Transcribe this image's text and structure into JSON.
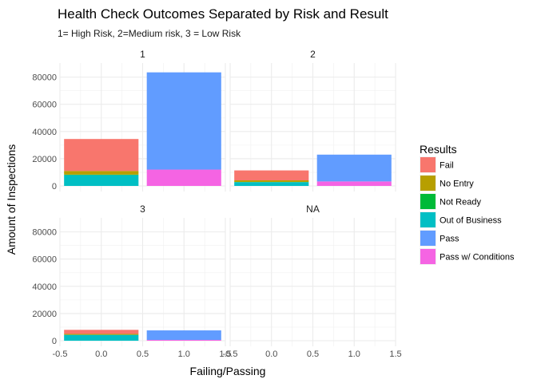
{
  "chart_data": {
    "type": "bar",
    "title": "Health Check Outcomes Separated by Risk and Result",
    "subtitle": "1= High Risk, 2=Medium risk, 3 = Low Risk",
    "xlabel": "Failing/Passing",
    "ylabel": "Amount of Inspections",
    "facet_by": "Risk",
    "grid": true,
    "legend_position": "right",
    "xlim": [
      -0.5,
      1.5
    ],
    "ylim": [
      0,
      88000
    ],
    "x_ticks": [
      -0.5,
      0.0,
      0.5,
      1.0,
      1.5
    ],
    "x_tick_labels": [
      "-0.5",
      "0.0",
      "0.5",
      "1.0",
      "1.5"
    ],
    "y_ticks": [
      0,
      20000,
      40000,
      60000,
      80000
    ],
    "y_tick_labels": [
      "0",
      "20000",
      "40000",
      "60000",
      "80000"
    ],
    "x": [
      0,
      1
    ],
    "legend": {
      "title": "Results",
      "entries": [
        {
          "label": "Fail",
          "color": "#F8766D"
        },
        {
          "label": "No Entry",
          "color": "#B79F00"
        },
        {
          "label": "Not Ready",
          "color": "#00BA38"
        },
        {
          "label": "Out of Business",
          "color": "#00BFC4"
        },
        {
          "label": "Pass",
          "color": "#619CFF"
        },
        {
          "label": "Pass w/ Conditions",
          "color": "#F564E3"
        }
      ]
    },
    "facets": [
      {
        "label": "1",
        "bars": [
          {
            "x": 0,
            "segments": [
              {
                "result": "Out of Business",
                "value": 8000
              },
              {
                "result": "Not Ready",
                "value": 300
              },
              {
                "result": "No Entry",
                "value": 2700
              },
              {
                "result": "Fail",
                "value": 23500
              }
            ]
          },
          {
            "x": 1,
            "segments": [
              {
                "result": "Pass w/ Conditions",
                "value": 12000
              },
              {
                "result": "Pass",
                "value": 71500
              }
            ]
          }
        ]
      },
      {
        "label": "2",
        "bars": [
          {
            "x": 0,
            "segments": [
              {
                "result": "Out of Business",
                "value": 2800
              },
              {
                "result": "Not Ready",
                "value": 100
              },
              {
                "result": "No Entry",
                "value": 1200
              },
              {
                "result": "Fail",
                "value": 7300
              }
            ]
          },
          {
            "x": 1,
            "segments": [
              {
                "result": "Pass w/ Conditions",
                "value": 3300
              },
              {
                "result": "Pass",
                "value": 19700
              }
            ]
          }
        ]
      },
      {
        "label": "3",
        "bars": [
          {
            "x": 0,
            "segments": [
              {
                "result": "Out of Business",
                "value": 4300
              },
              {
                "result": "Not Ready",
                "value": 50
              },
              {
                "result": "No Entry",
                "value": 650
              },
              {
                "result": "Fail",
                "value": 3000
              }
            ]
          },
          {
            "x": 1,
            "segments": [
              {
                "result": "Pass w/ Conditions",
                "value": 600
              },
              {
                "result": "Pass",
                "value": 7000
              }
            ]
          }
        ]
      },
      {
        "label": "NA",
        "bars": []
      }
    ]
  }
}
